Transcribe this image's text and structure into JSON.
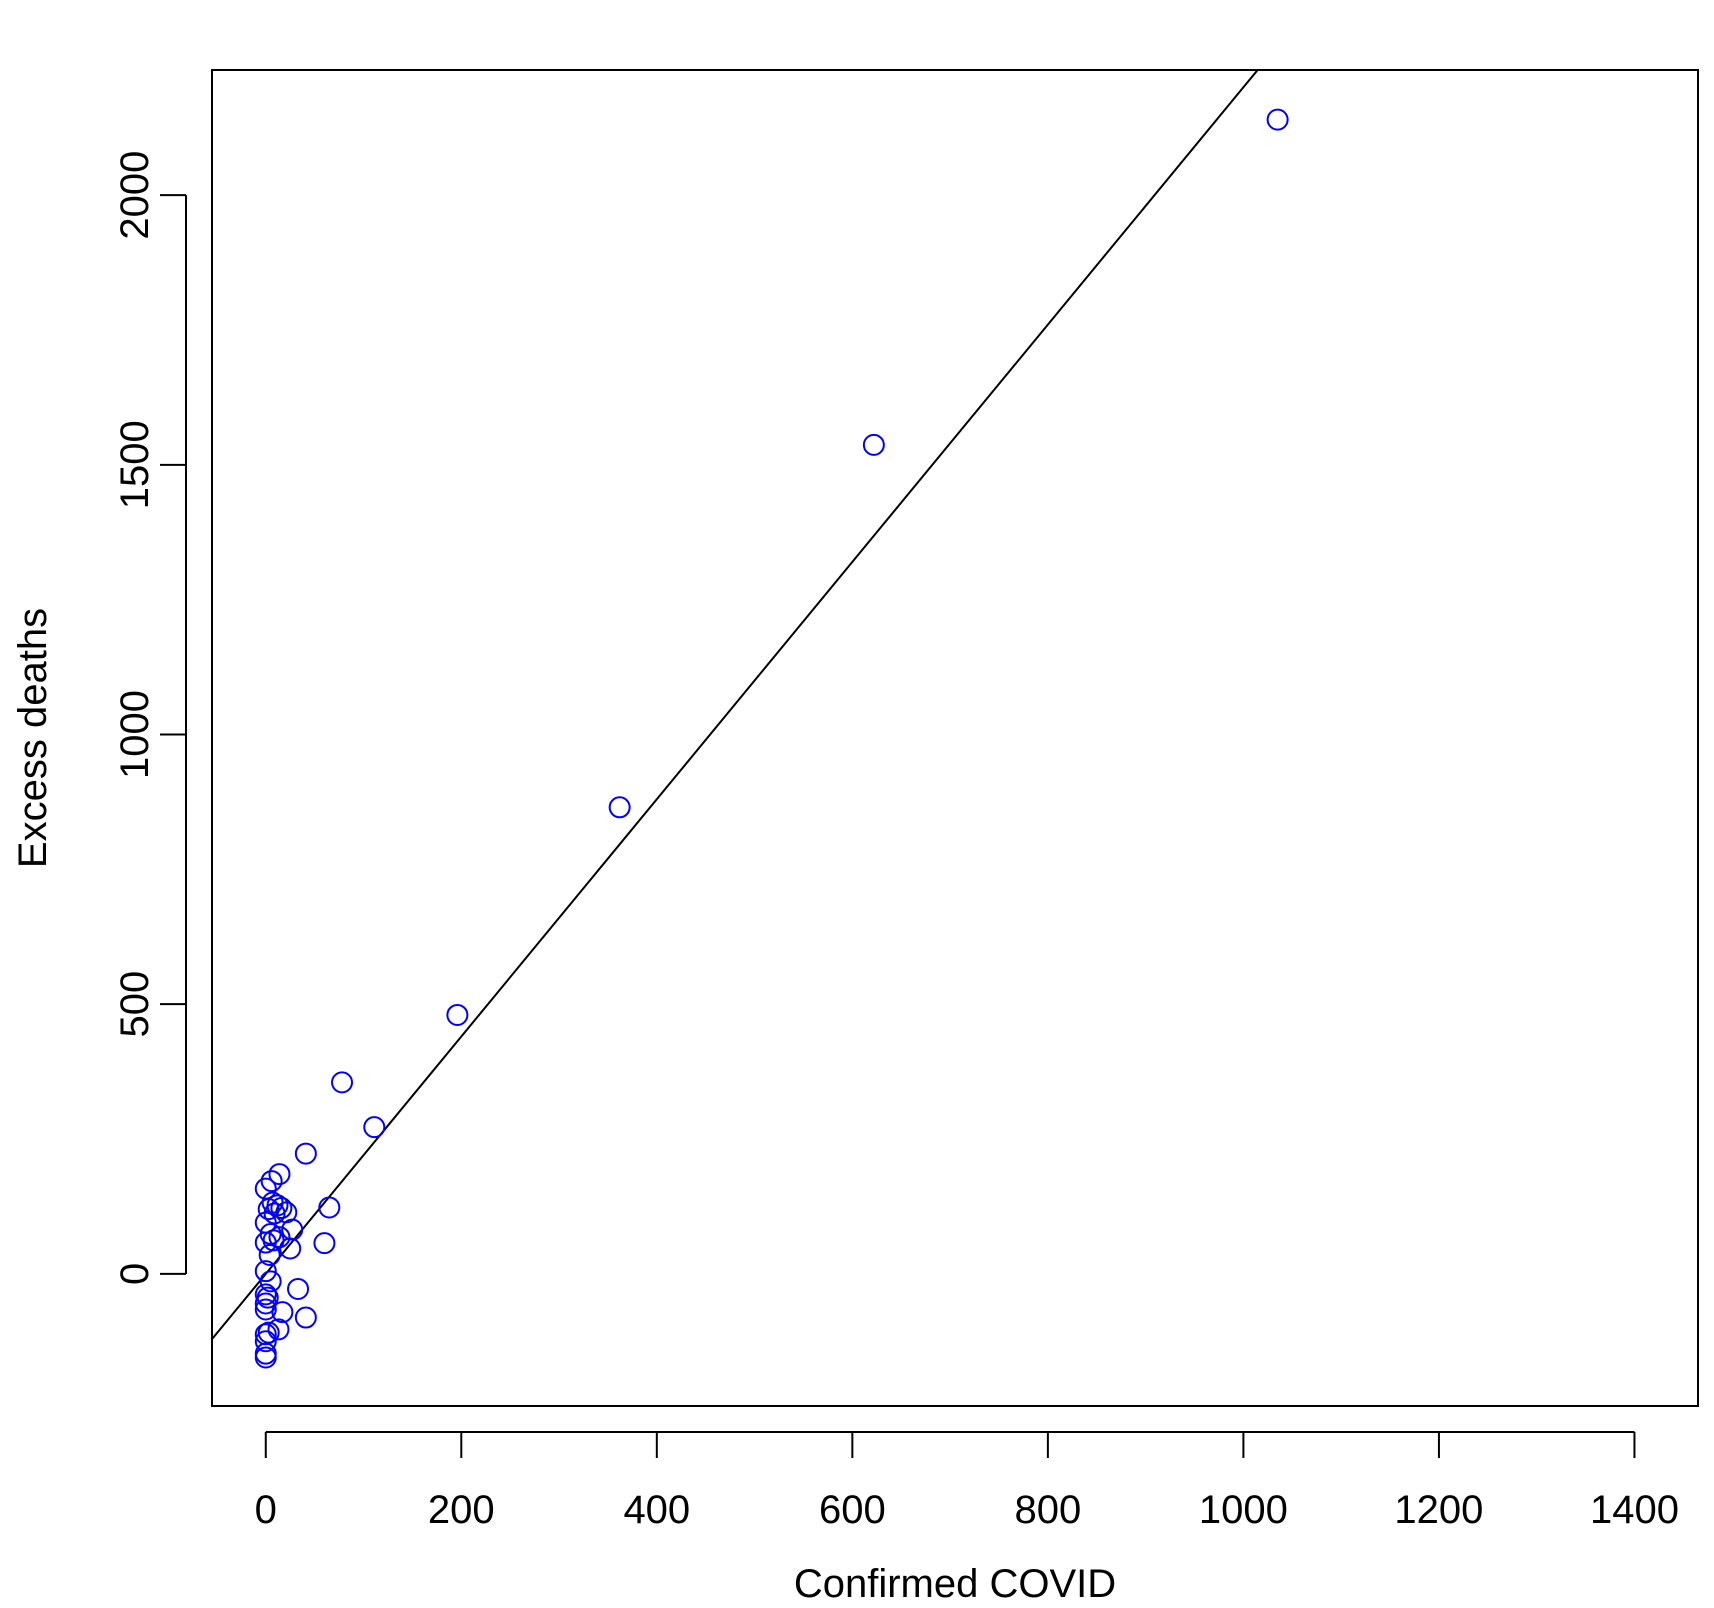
{
  "chart_data": {
    "type": "scatter",
    "title": "",
    "xlabel": "Confirmed COVID",
    "ylabel": "Excess deaths",
    "xlim": [
      -55,
      1465
    ],
    "ylim": [
      -245,
      2232
    ],
    "x_ticks": [
      0,
      200,
      400,
      600,
      800,
      1000,
      1200,
      1400
    ],
    "x_tick_labels": [
      "0",
      "200",
      "400",
      "600",
      "800",
      "1000",
      "1200",
      "1400"
    ],
    "y_ticks": [
      0,
      500,
      1000,
      1500,
      2000
    ],
    "y_tick_labels": [
      "0",
      "500",
      "1000",
      "1500",
      "2000"
    ],
    "grid": false,
    "legend": "none",
    "series": [
      {
        "marker": "open-circle",
        "color": "#0000ff",
        "points": [
          [
            1035,
            2140
          ],
          [
            622,
            1537
          ],
          [
            362,
            865
          ],
          [
            196,
            480
          ],
          [
            78,
            355
          ],
          [
            111,
            272
          ],
          [
            41,
            223
          ],
          [
            65,
            123
          ],
          [
            60,
            57
          ],
          [
            14,
            185
          ],
          [
            6,
            172
          ],
          [
            0,
            158
          ],
          [
            7,
            132
          ],
          [
            12,
            127
          ],
          [
            3,
            120
          ],
          [
            16,
            122
          ],
          [
            21,
            114
          ],
          [
            9,
            112
          ],
          [
            0,
            95
          ],
          [
            27,
            82
          ],
          [
            5,
            74
          ],
          [
            14,
            68
          ],
          [
            8,
            62
          ],
          [
            0,
            58
          ],
          [
            25,
            47
          ],
          [
            4,
            35
          ],
          [
            0,
            5
          ],
          [
            5,
            -14
          ],
          [
            33,
            -28
          ],
          [
            0,
            -38
          ],
          [
            2,
            -44
          ],
          [
            0,
            -55
          ],
          [
            0,
            -66
          ],
          [
            17,
            -71
          ],
          [
            41,
            -81
          ],
          [
            13,
            -103
          ],
          [
            3,
            -109
          ],
          [
            0,
            -112
          ],
          [
            0,
            -125
          ],
          [
            0,
            -148
          ],
          [
            0,
            -155
          ]
        ]
      }
    ],
    "fit_line": {
      "intercept": 0,
      "slope": 2.2,
      "color": "#000000"
    }
  }
}
